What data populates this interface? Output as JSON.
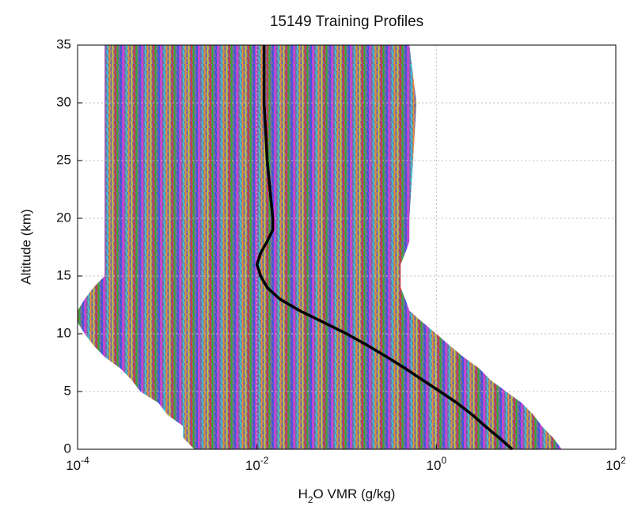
{
  "chart_data": {
    "type": "line",
    "title": "15149 Training Profiles",
    "x_label": "H2O VMR (g/kg)",
    "y_label": "Altitude (km)",
    "xscale": "log",
    "grid": true,
    "xlim": [
      0.0001,
      100
    ],
    "xticks": [
      {
        "value": 0.0001,
        "label": "10-4"
      },
      {
        "value": 0.01,
        "label": "10-2"
      },
      {
        "value": 1,
        "label": "100"
      },
      {
        "value": 100,
        "label": "102"
      }
    ],
    "ylim": [
      0,
      35
    ],
    "yticks": [
      0,
      5,
      10,
      15,
      20,
      25,
      30,
      35
    ],
    "y": [
      0,
      1,
      2,
      3,
      4,
      5,
      6,
      7,
      8,
      9,
      10,
      11,
      12,
      13,
      14,
      15,
      16,
      17,
      18,
      19,
      20,
      25,
      30,
      35
    ],
    "series": [
      {
        "color": "#000000",
        "values": [
          7,
          5,
          3.5,
          2.5,
          1.7,
          1.1,
          0.7,
          0.45,
          0.28,
          0.17,
          0.1,
          0.055,
          0.03,
          0.018,
          0.013,
          0.011,
          0.01,
          0.011,
          0.013,
          0.015,
          0.015,
          0.013,
          0.012,
          0.012
        ]
      }
    ],
    "lower": [
      0.002,
      0.0015,
      0.0015,
      0.001,
      0.0008,
      0.0005,
      0.0004,
      0.0003,
      0.0002,
      0.00015,
      0.00012,
      0.0001,
      0.0001,
      0.00012,
      0.00015,
      0.0002,
      0.0002,
      0.0002,
      0.0002,
      0.0002,
      0.0002,
      0.0002,
      0.0002,
      0.0002
    ],
    "upper": [
      25,
      20,
      15,
      12,
      9,
      6,
      4,
      3,
      2,
      1.4,
      1,
      0.7,
      0.5,
      0.45,
      0.4,
      0.4,
      0.4,
      0.45,
      0.5,
      0.5,
      0.5,
      0.55,
      0.6,
      0.5
    ]
  }
}
